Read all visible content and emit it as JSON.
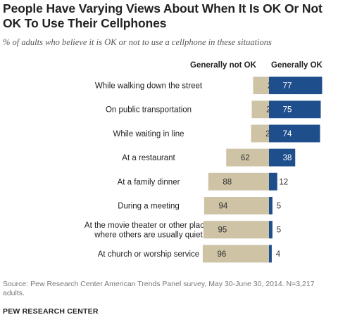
{
  "title": "People Have Varying Views About When It Is OK Or Not OK To Use Their Cellphones",
  "subtitle": "% of adults who believe it is OK or not to use a cellphone in these situations",
  "colors": {
    "not_ok": "#cec3a5",
    "ok": "#1f4e8c",
    "label_on_ok": "#ffffff",
    "label_on_not_ok": "#333333"
  },
  "chart_data": {
    "type": "bar",
    "orientation": "horizontal-diverging",
    "categories": [
      "While walking down the street",
      "On public transportation",
      "While waiting in line",
      "At a restaurant",
      "At a family dinner",
      "During a meeting",
      "At the movie theater or other places where others are usually quiet",
      "At church or worship service"
    ],
    "series": [
      {
        "name": "Generally not OK",
        "values": [
          23,
          25,
          26,
          62,
          88,
          94,
          95,
          96
        ]
      },
      {
        "name": "Generally OK",
        "values": [
          77,
          75,
          74,
          38,
          12,
          5,
          5,
          4
        ]
      }
    ]
  },
  "footer": {
    "source": "Source: Pew Research Center American Trends Panel survey, May 30-June 30, 2014. N=3,217 adults.",
    "brand": "PEW RESEARCH CENTER"
  }
}
